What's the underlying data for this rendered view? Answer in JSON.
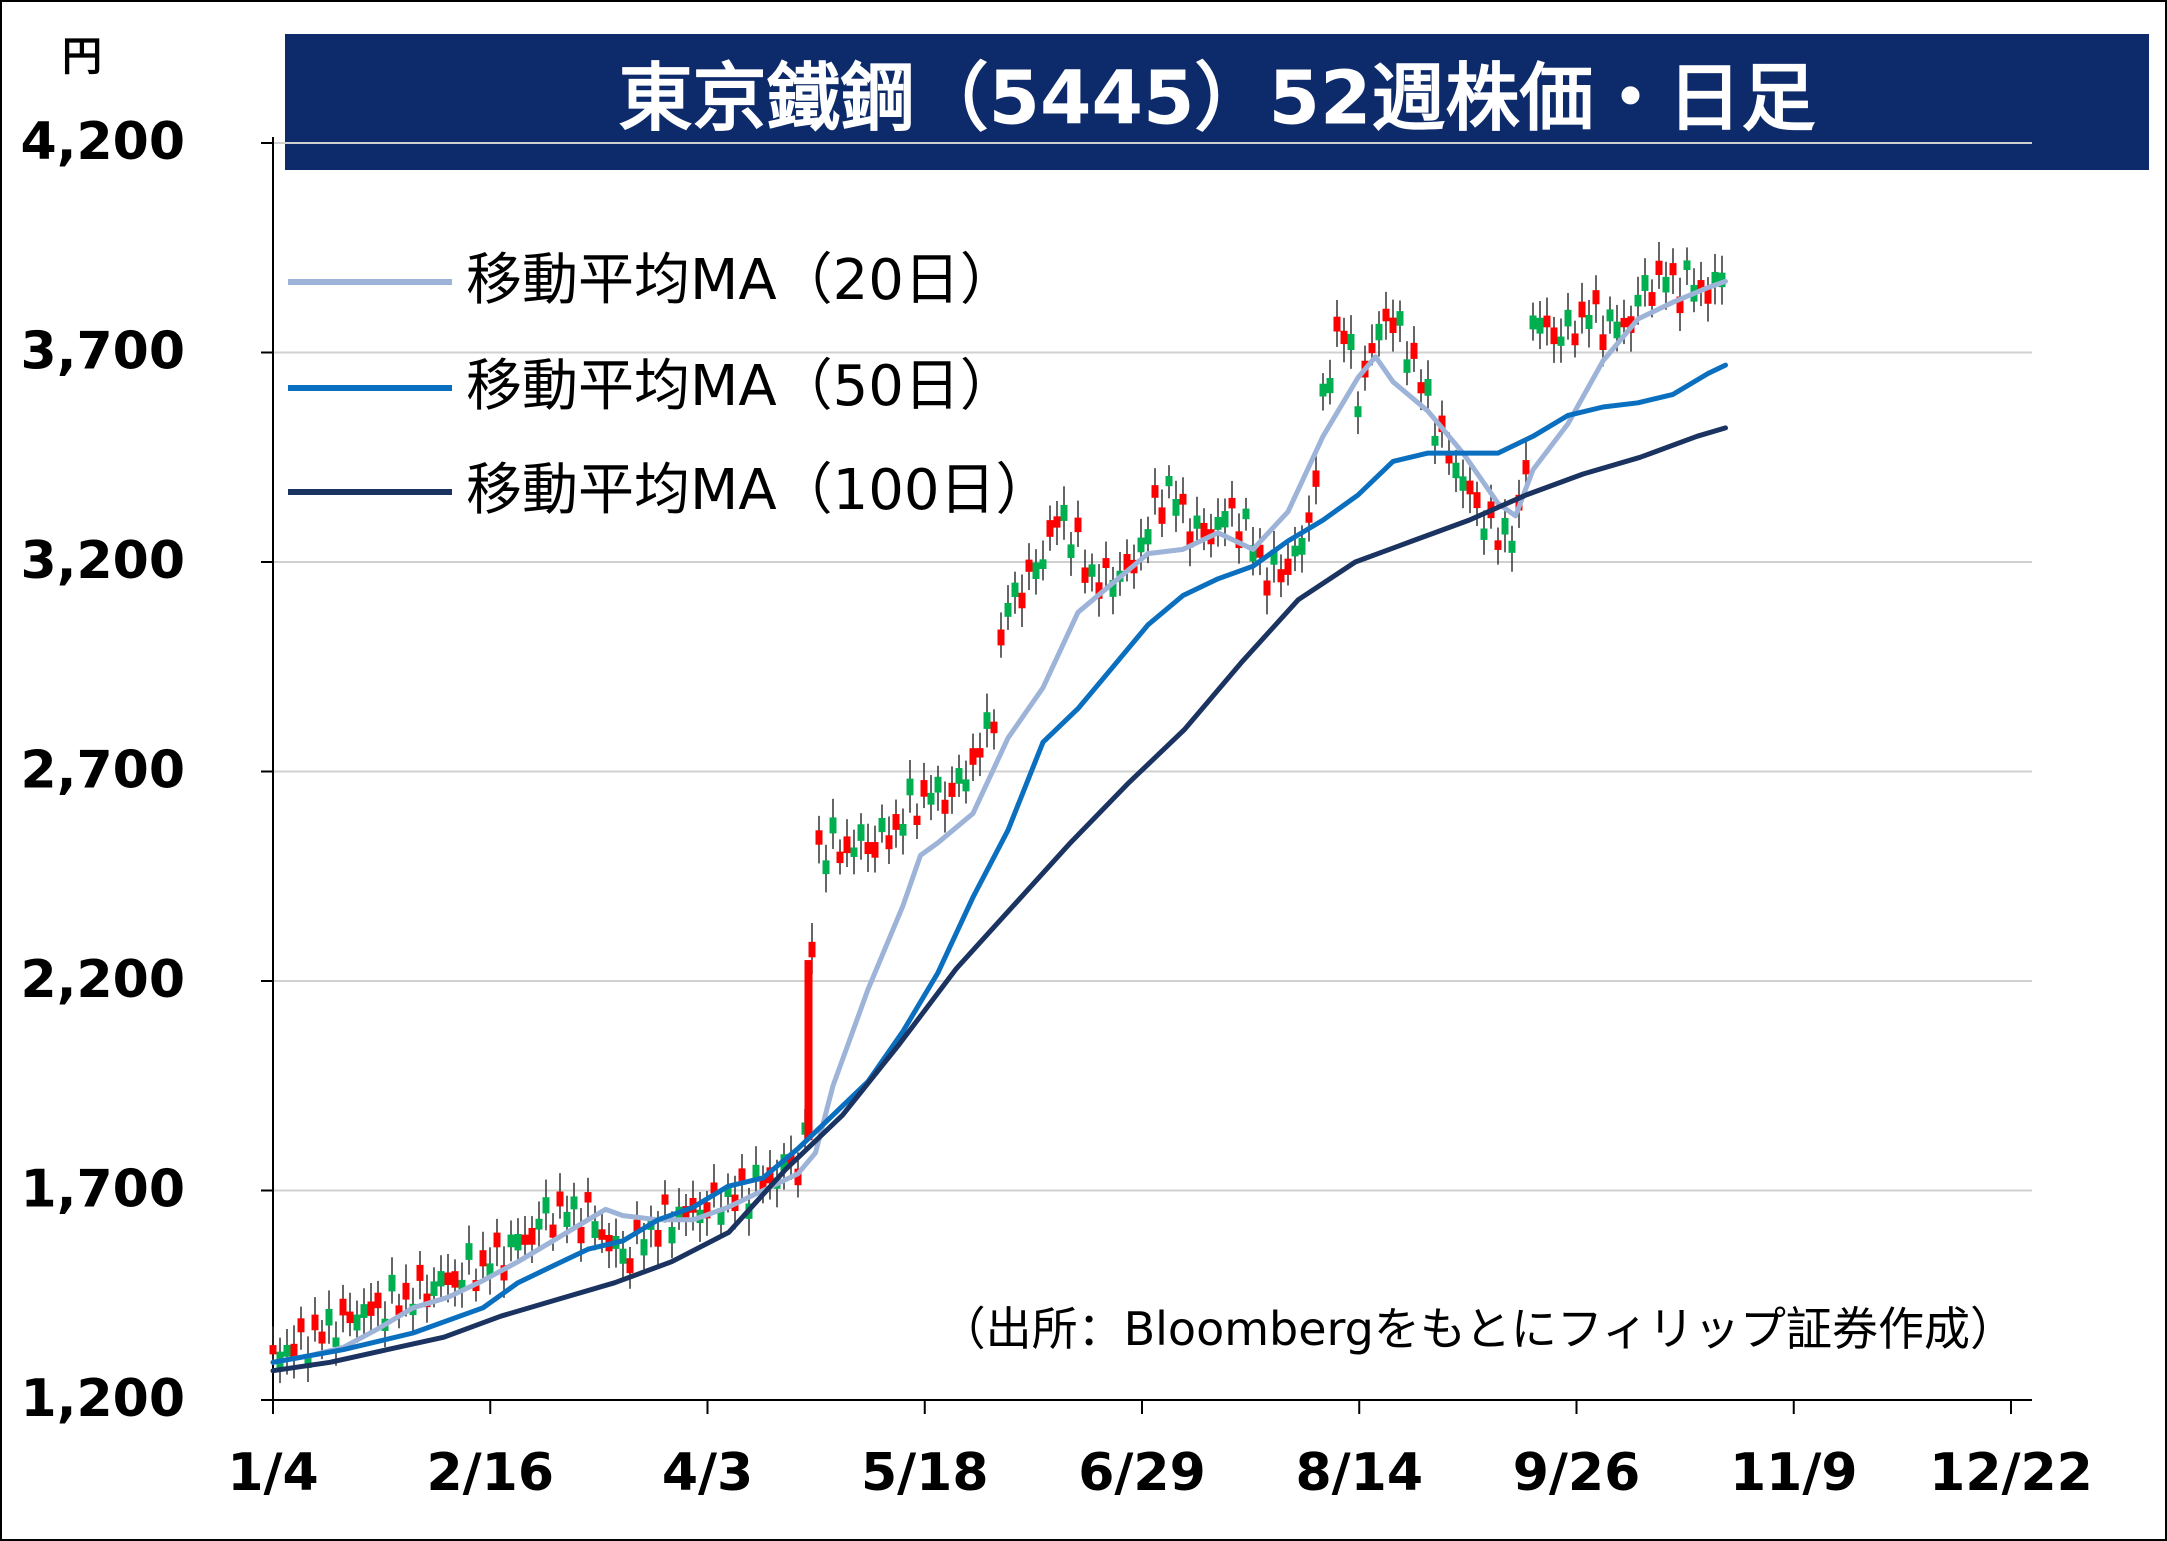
{
  "chart_data": {
    "type": "line",
    "title": "東京鐵鋼（5445）52週株価・日足",
    "unit": "円",
    "source": "（出所：Bloombergをもとにフィリップ証券作成）",
    "ylim": [
      1200,
      4200
    ],
    "y_ticks": [
      1200,
      1700,
      2200,
      2700,
      3200,
      3700,
      4200
    ],
    "y_tick_labels": [
      "1,200",
      "1,700",
      "2,200",
      "2,700",
      "3,200",
      "3,700",
      "4,200"
    ],
    "x_ticks": [
      "1/4",
      "2/16",
      "4/3",
      "5/18",
      "6/29",
      "8/14",
      "9/26",
      "11/9",
      "12/22"
    ],
    "grid": true,
    "legend_position": "top-left",
    "colors": {
      "up": "#ff0000",
      "down": "#00b050",
      "ma20": "#9db4d8",
      "ma50": "#0a6fbf",
      "ma100": "#1b3360",
      "title_bg": "#0d2a6b",
      "grid": "#d0d0d0"
    },
    "series": [
      {
        "name": "移動平均MA（20日）",
        "points": [
          [
            0,
            1290
          ],
          [
            10,
            1305
          ],
          [
            20,
            1325
          ],
          [
            30,
            1370
          ],
          [
            40,
            1420
          ],
          [
            50,
            1445
          ],
          [
            60,
            1485
          ],
          [
            70,
            1530
          ],
          [
            80,
            1580
          ],
          [
            90,
            1630
          ],
          [
            95,
            1655
          ],
          [
            100,
            1640
          ],
          [
            110,
            1630
          ],
          [
            120,
            1630
          ],
          [
            130,
            1660
          ],
          [
            140,
            1700
          ],
          [
            150,
            1740
          ],
          [
            155,
            1790
          ],
          [
            160,
            1950
          ],
          [
            170,
            2180
          ],
          [
            180,
            2380
          ],
          [
            185,
            2500
          ],
          [
            190,
            2530
          ],
          [
            200,
            2600
          ],
          [
            210,
            2780
          ],
          [
            220,
            2900
          ],
          [
            230,
            3080
          ],
          [
            240,
            3150
          ],
          [
            250,
            3220
          ],
          [
            260,
            3230
          ],
          [
            270,
            3270
          ],
          [
            280,
            3230
          ],
          [
            290,
            3320
          ],
          [
            300,
            3500
          ],
          [
            310,
            3640
          ],
          [
            315,
            3690
          ],
          [
            320,
            3630
          ],
          [
            330,
            3560
          ],
          [
            340,
            3460
          ],
          [
            350,
            3340
          ],
          [
            355,
            3310
          ],
          [
            360,
            3420
          ],
          [
            370,
            3530
          ],
          [
            380,
            3680
          ],
          [
            390,
            3780
          ],
          [
            400,
            3820
          ],
          [
            410,
            3855
          ],
          [
            415,
            3870
          ]
        ]
      },
      {
        "name": "移動平均MA（50日）",
        "points": [
          [
            0,
            1290
          ],
          [
            20,
            1320
          ],
          [
            40,
            1360
          ],
          [
            60,
            1420
          ],
          [
            70,
            1480
          ],
          [
            80,
            1520
          ],
          [
            90,
            1560
          ],
          [
            100,
            1580
          ],
          [
            110,
            1630
          ],
          [
            120,
            1660
          ],
          [
            130,
            1710
          ],
          [
            140,
            1730
          ],
          [
            150,
            1800
          ],
          [
            160,
            1880
          ],
          [
            170,
            1960
          ],
          [
            180,
            2080
          ],
          [
            190,
            2220
          ],
          [
            200,
            2400
          ],
          [
            210,
            2560
          ],
          [
            220,
            2770
          ],
          [
            230,
            2850
          ],
          [
            240,
            2950
          ],
          [
            250,
            3050
          ],
          [
            260,
            3120
          ],
          [
            270,
            3160
          ],
          [
            280,
            3190
          ],
          [
            290,
            3250
          ],
          [
            300,
            3300
          ],
          [
            310,
            3360
          ],
          [
            320,
            3440
          ],
          [
            330,
            3460
          ],
          [
            340,
            3460
          ],
          [
            350,
            3460
          ],
          [
            360,
            3500
          ],
          [
            370,
            3550
          ],
          [
            380,
            3570
          ],
          [
            390,
            3580
          ],
          [
            400,
            3600
          ],
          [
            410,
            3650
          ],
          [
            415,
            3670
          ]
        ]
      },
      {
        "name": "移動平均MA（100日）",
        "points": [
          [
            0,
            1270
          ],
          [
            20,
            1290
          ],
          [
            40,
            1320
          ],
          [
            60,
            1350
          ],
          [
            80,
            1400
          ],
          [
            100,
            1440
          ],
          [
            120,
            1480
          ],
          [
            140,
            1530
          ],
          [
            160,
            1600
          ],
          [
            180,
            1750
          ],
          [
            200,
            1880
          ],
          [
            220,
            2050
          ],
          [
            240,
            2230
          ],
          [
            260,
            2380
          ],
          [
            280,
            2530
          ],
          [
            300,
            2670
          ],
          [
            320,
            2800
          ],
          [
            340,
            2960
          ],
          [
            360,
            3110
          ],
          [
            380,
            3200
          ],
          [
            400,
            3250
          ],
          [
            420,
            3300
          ],
          [
            440,
            3360
          ],
          [
            460,
            3410
          ],
          [
            480,
            3450
          ],
          [
            500,
            3500
          ],
          [
            510,
            3520
          ]
        ]
      }
    ]
  }
}
